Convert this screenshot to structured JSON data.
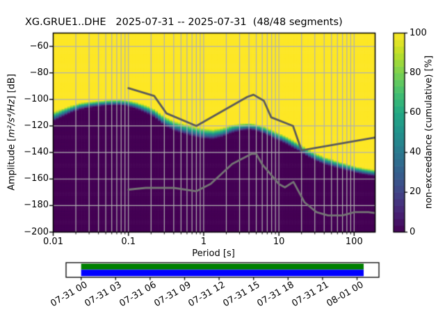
{
  "title": "XG.GRUE1..DHE   2025-07-31 -- 2025-07-31  (48/48 segments)",
  "chart_data": {
    "type": "heatmap",
    "title": "XG.GRUE1..DHE   2025-07-31 -- 2025-07-31  (48/48 segments)",
    "xlabel": "Period [s]",
    "ylabel_parts": {
      "pre": "Amplitude [",
      "math": "m²/s⁴/Hz",
      "post": "] [dB]"
    },
    "colorbar_label": "non-exceedance (cumulative) [%]",
    "x_scale": "log",
    "x_range": [
      0.01,
      190
    ],
    "y_range": [
      -200,
      -50
    ],
    "x_ticks": [
      {
        "v": 0.01,
        "label": "0.01"
      },
      {
        "v": 0.1,
        "label": "0.1"
      },
      {
        "v": 1,
        "label": "1"
      },
      {
        "v": 10,
        "label": "10"
      },
      {
        "v": 100,
        "label": "100"
      }
    ],
    "y_ticks": [
      {
        "v": -60,
        "label": "−60"
      },
      {
        "v": -80,
        "label": "−80"
      },
      {
        "v": -100,
        "label": "−100"
      },
      {
        "v": -120,
        "label": "−120"
      },
      {
        "v": -140,
        "label": "−140"
      },
      {
        "v": -160,
        "label": "−160"
      },
      {
        "v": -180,
        "label": "−180"
      },
      {
        "v": -200,
        "label": "−200"
      }
    ],
    "colorbar_ticks": [
      {
        "v": 0,
        "label": "0"
      },
      {
        "v": 20,
        "label": "20"
      },
      {
        "v": 40,
        "label": "40"
      },
      {
        "v": 60,
        "label": "60"
      },
      {
        "v": 80,
        "label": "80"
      },
      {
        "v": 100,
        "label": "100"
      }
    ],
    "colorbar_levels": 30,
    "grid_on": true,
    "grid_color": "#b0b0b0",
    "colormap": {
      "name": "viridis",
      "stops": [
        [
          0.0,
          "#440154"
        ],
        [
          0.1,
          "#482475"
        ],
        [
          0.2,
          "#414487"
        ],
        [
          0.3,
          "#355f8d"
        ],
        [
          0.4,
          "#2a788e"
        ],
        [
          0.5,
          "#21918c"
        ],
        [
          0.6,
          "#22a884"
        ],
        [
          0.7,
          "#44bf70"
        ],
        [
          0.8,
          "#7ad151"
        ],
        [
          0.9,
          "#bddf26"
        ],
        [
          1.0,
          "#fde725"
        ]
      ]
    },
    "hist_bins_per_octave": 8,
    "db_bin_width": 1,
    "boundary_non_exceedance": [
      [
        0.01,
        -112.8,
        3.5
      ],
      [
        0.013,
        -110.0,
        3.2
      ],
      [
        0.017,
        -107.2,
        2.8
      ],
      [
        0.023,
        -104.8,
        2.5
      ],
      [
        0.031,
        -103.6,
        2.3
      ],
      [
        0.042,
        -102.8,
        2.2
      ],
      [
        0.056,
        -102.2,
        2.2
      ],
      [
        0.075,
        -102.0,
        2.2
      ],
      [
        0.095,
        -102.5,
        2.3
      ],
      [
        0.13,
        -104.5,
        2.6
      ],
      [
        0.17,
        -107.0,
        3.0
      ],
      [
        0.22,
        -110.0,
        3.3
      ],
      [
        0.3,
        -116.0,
        3.6
      ],
      [
        0.4,
        -119.5,
        3.8
      ],
      [
        0.55,
        -122.0,
        4.0
      ],
      [
        0.75,
        -124.0,
        4.0
      ],
      [
        1.0,
        -125.5,
        4.0
      ],
      [
        1.35,
        -126.0,
        3.8
      ],
      [
        1.8,
        -124.5,
        3.5
      ],
      [
        2.4,
        -121.8,
        3.2
      ],
      [
        3.2,
        -120.6,
        2.8
      ],
      [
        4.0,
        -120.0,
        2.6
      ],
      [
        5.0,
        -120.8,
        2.6
      ],
      [
        6.5,
        -123.0,
        2.8
      ],
      [
        8.0,
        -125.5,
        3.0
      ],
      [
        10,
        -128.0,
        3.0
      ],
      [
        13,
        -131.0,
        3.0
      ],
      [
        16,
        -133.8,
        3.0
      ],
      [
        20,
        -137.0,
        3.0
      ],
      [
        25,
        -140.5,
        3.0
      ],
      [
        32,
        -143.5,
        3.0
      ],
      [
        40,
        -145.8,
        2.9
      ],
      [
        50,
        -147.5,
        2.8
      ],
      [
        65,
        -149.5,
        2.7
      ],
      [
        85,
        -151.2,
        2.6
      ],
      [
        110,
        -153.0,
        2.5
      ],
      [
        145,
        -154.2,
        2.5
      ],
      [
        190,
        -155.2,
        2.5
      ]
    ],
    "noise_models": {
      "high": {
        "name": "high-noise-model-line",
        "color": "#5b5b5b",
        "points": [
          [
            0.1,
            -91.5
          ],
          [
            0.22,
            -97.4
          ],
          [
            0.32,
            -110.5
          ],
          [
            0.8,
            -120.0
          ],
          [
            3.8,
            -98.1
          ],
          [
            4.6,
            -96.5
          ],
          [
            6.3,
            -101.0
          ],
          [
            7.9,
            -113.5
          ],
          [
            15.4,
            -120.0
          ],
          [
            20.0,
            -138.5
          ],
          [
            190.0,
            -128.7
          ]
        ]
      },
      "low": {
        "name": "low-noise-model-line",
        "color": "#757575",
        "points": [
          [
            0.1,
            -168.0
          ],
          [
            0.17,
            -166.7
          ],
          [
            0.4,
            -166.7
          ],
          [
            0.8,
            -169.2
          ],
          [
            1.24,
            -163.7
          ],
          [
            2.4,
            -148.6
          ],
          [
            4.3,
            -141.1
          ],
          [
            5.0,
            -141.1
          ],
          [
            6.0,
            -149.0
          ],
          [
            10.0,
            -163.8
          ],
          [
            12.0,
            -166.3
          ],
          [
            15.6,
            -162.2
          ],
          [
            21.9,
            -177.6
          ],
          [
            31.6,
            -185.0
          ],
          [
            45.0,
            -187.5
          ],
          [
            70.0,
            -187.5
          ],
          [
            101.0,
            -185.0
          ],
          [
            154.0,
            -185.0
          ],
          [
            190.0,
            -185.6
          ]
        ]
      }
    },
    "coverage_timeline": {
      "labels": [
        "07-31 00",
        "07-31 03",
        "07-31 06",
        "07-31 09",
        "07-31 12",
        "07-31 15",
        "07-31 18",
        "07-31 21",
        "08-01 00"
      ],
      "bar_colors": {
        "top": "#008000",
        "bottom": "#0000ff"
      },
      "box_color": "#ffffff",
      "border_color": "#000000"
    }
  }
}
